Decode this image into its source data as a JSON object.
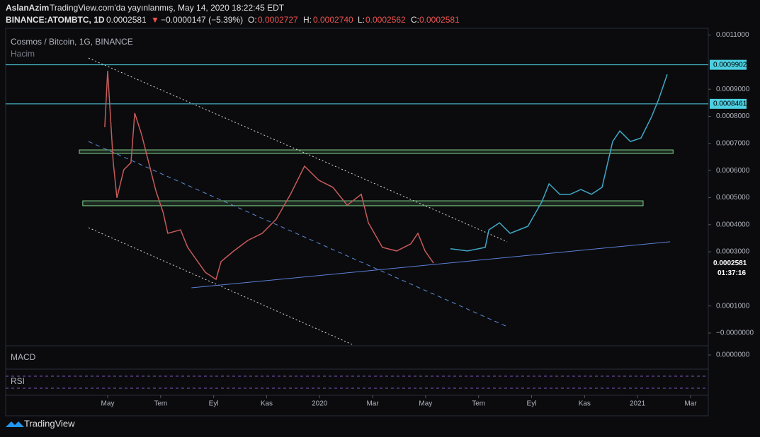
{
  "header": {
    "author": "AslanAzim",
    "published": "TradingView.com'da yayınlanmış, May 14, 2020 18:22:45 EDT",
    "symbol": "BINANCE:ATOMBTC, 1D",
    "last": "0.0002581",
    "arrow": "▼",
    "change": "−0.0000147 (−5.39%)",
    "o_label": "O:",
    "o": "0.0002727",
    "h_label": "H:",
    "h": "0.0002740",
    "l_label": "L:",
    "l": "0.0002562",
    "c_label": "C:",
    "c": "0.0002581"
  },
  "footer": {
    "brand": "TradingView"
  },
  "chart_data": {
    "type": "line",
    "title": "Cosmos / Bitcoin, 1G, BINANCE",
    "volume_label": "Hacim",
    "macd_label": "MACD",
    "rsi_label": "RSI",
    "xlim": [
      -3.85,
      22.67
    ],
    "ylim": [
      -4.44e-05,
      0.001125
    ],
    "xticks": [
      {
        "value": 0,
        "label": "May"
      },
      {
        "value": 2,
        "label": "Tem"
      },
      {
        "value": 4,
        "label": "Eyl"
      },
      {
        "value": 6,
        "label": "Kas"
      },
      {
        "value": 8,
        "label": "2020"
      },
      {
        "value": 10,
        "label": "Mar"
      },
      {
        "value": 12,
        "label": "May"
      },
      {
        "value": 14,
        "label": "Tem"
      },
      {
        "value": 16,
        "label": "Eyl"
      },
      {
        "value": 18,
        "label": "Kas"
      },
      {
        "value": 20,
        "label": "2021"
      },
      {
        "value": 22,
        "label": "Mar"
      }
    ],
    "yticks": [
      {
        "value": 0.0011,
        "label": "0.0011000"
      },
      {
        "value": 0.0009,
        "label": "0.0009000"
      },
      {
        "value": 0.0008,
        "label": "0.0008000"
      },
      {
        "value": 0.0007,
        "label": "0.0007000"
      },
      {
        "value": 0.0006,
        "label": "0.0006000"
      },
      {
        "value": 0.0005,
        "label": "0.0005000"
      },
      {
        "value": 0.0004,
        "label": "0.0004000"
      },
      {
        "value": 0.0003,
        "label": "0.0003000"
      },
      {
        "value": 0.0001,
        "label": "0.0001000"
      },
      {
        "value": 0,
        "label": "−0.0000000"
      }
    ],
    "macd_ticks": [
      {
        "value": 0,
        "label": "0.0000000"
      }
    ],
    "series": [
      {
        "color": "#c75a5a",
        "x": [
          -0.11,
          0,
          0.21,
          0.35,
          0.61,
          0.88,
          1.02,
          1.28,
          1.55,
          1.82,
          2.09,
          2.27,
          2.75,
          3.02,
          3.69,
          4.09,
          4.28,
          4.76,
          5.29,
          5.83,
          6.36,
          6.9,
          7.43,
          7.97,
          8.5,
          9.04,
          9.57,
          9.84,
          10.37,
          10.91,
          11.44,
          11.71,
          11.98,
          12.3
        ],
        "values": [
          0.00076,
          0.000968,
          0.000629,
          0.000499,
          0.000603,
          0.000629,
          0.000812,
          0.000733,
          0.000629,
          0.000525,
          0.000446,
          0.000368,
          0.000381,
          0.000316,
          0.000224,
          0.000198,
          0.000264,
          0.000303,
          0.000342,
          0.000368,
          0.00042,
          0.000512,
          0.000616,
          0.000564,
          0.000538,
          0.000472,
          0.000512,
          0.000407,
          0.000316,
          0.000303,
          0.000329,
          0.000368,
          0.000303,
          0.0002581
        ]
      },
      {
        "color": "#3fa8c4",
        "x": [
          12.94,
          13.58,
          14.25,
          14.39,
          14.79,
          15.19,
          15.86,
          16.39,
          16.66,
          17.06,
          17.46,
          17.86,
          18.26,
          18.66,
          19.06,
          19.33,
          19.73,
          20.13,
          20.53,
          20.8,
          21.12
        ],
        "values": [
          0.000311,
          0.000303,
          0.000316,
          0.000381,
          0.000407,
          0.000368,
          0.000394,
          0.000485,
          0.000551,
          0.000512,
          0.000512,
          0.00053,
          0.000512,
          0.000538,
          0.000707,
          0.000746,
          0.000707,
          0.00072,
          0.000799,
          0.000864,
          0.000955
        ]
      }
    ],
    "levels": [
      {
        "value": 0.0009902,
        "label": "0.0009902"
      },
      {
        "value": 0.0008461,
        "label": "0.0008461"
      }
    ],
    "level_color": "#4dd0e1",
    "price_marker": {
      "value": 0.0002581,
      "label": "0.0002581"
    },
    "countdown": "01:37:16",
    "zones": [
      {
        "x": [
          -1.07,
          21.34
        ],
        "y": [
          0.000663,
          0.000676
        ]
      },
      {
        "x": [
          -0.94,
          20.21
        ],
        "y": [
          0.00047,
          0.000488
        ]
      }
    ],
    "zone_color": "#7fd18a",
    "trendlines": [
      {
        "x": [
          -0.72,
          15.08
        ],
        "y": [
          0.001015,
          0.000337
        ],
        "color": "#d9d9d9",
        "dash": "2,3"
      },
      {
        "x": [
          -0.72,
          9.28
        ],
        "y": [
          0.000389,
          -4.44e-05
        ],
        "color": "#d9d9d9",
        "dash": "2,3"
      },
      {
        "x": [
          -0.72,
          15.08
        ],
        "y": [
          0.000707,
          2.35e-05
        ],
        "color": "#5b8fd8",
        "dash": "6,5"
      },
      {
        "x": [
          3.16,
          21.23
        ],
        "y": [
          0.000167,
          0.000337
        ],
        "color": "#5b7fd6",
        "dash": "none"
      }
    ]
  }
}
